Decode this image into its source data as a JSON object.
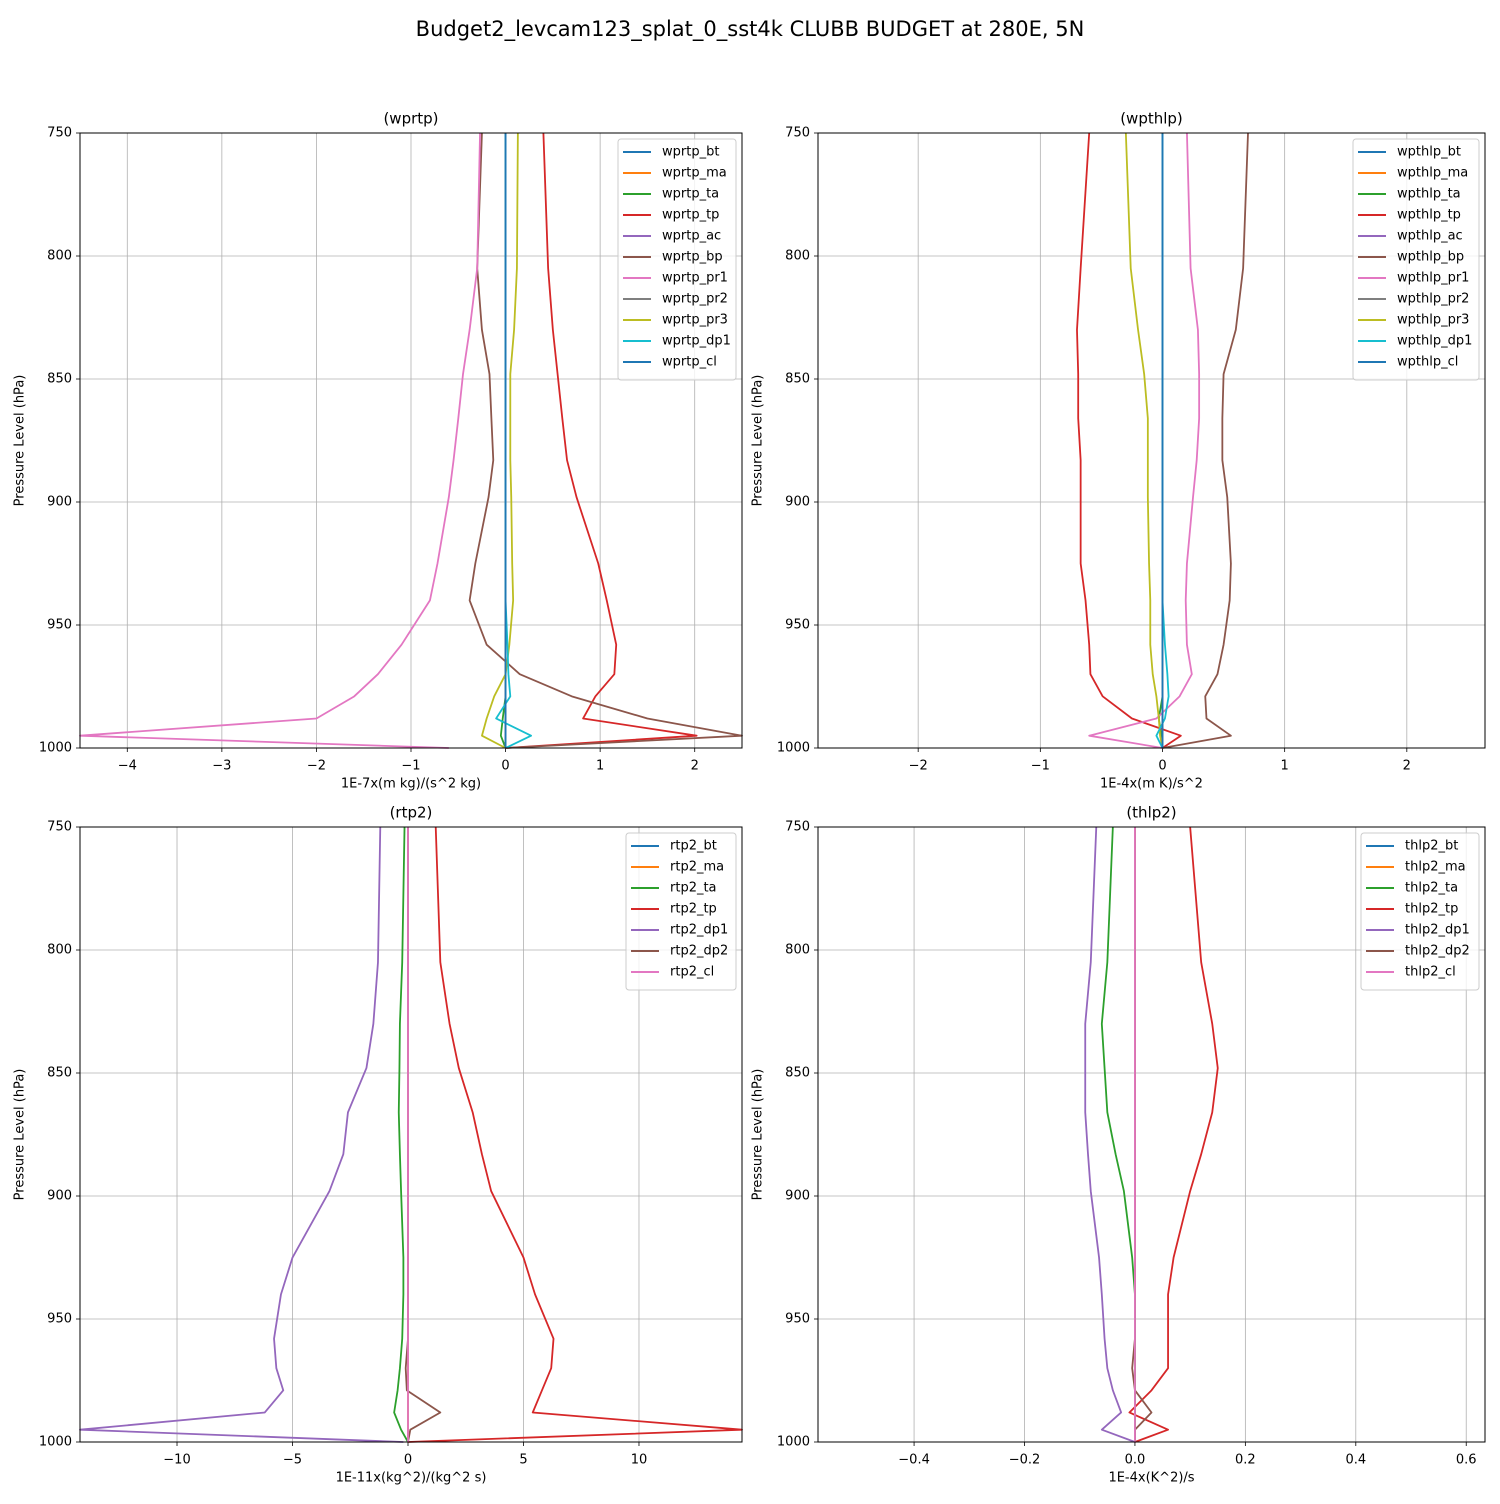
{
  "title": "Budget2_levcam123_splat_0_sst4k CLUBB BUDGET at 280E, 5N",
  "chart_data": [
    {
      "type": "line",
      "title": "(wprtp)",
      "x_label": "1E-7x(m kg)/(s^2 kg)",
      "y_label": "Pressure Level (hPa)",
      "y": [
        750,
        805,
        830,
        848,
        866,
        883,
        898,
        925,
        940,
        958,
        970,
        979,
        988,
        995,
        1000
      ],
      "xlim": [
        -4.5,
        2.5
      ],
      "xticks": [
        {
          "value": -4,
          "label": "−4"
        },
        {
          "value": -3,
          "label": "−3"
        },
        {
          "value": -2,
          "label": "−2"
        },
        {
          "value": -1,
          "label": "−1"
        },
        0,
        1,
        2
      ],
      "ylim": [
        1000,
        750
      ],
      "yticks": [
        750,
        800,
        850,
        900,
        950,
        1000
      ],
      "grid": true,
      "legend": "upper right",
      "series": [
        {
          "name": "wprtp_bt",
          "color": "#1f77b4",
          "values": [
            0,
            0,
            0,
            0,
            0,
            0,
            0,
            0,
            0,
            0,
            0,
            0,
            0,
            0,
            0
          ]
        },
        {
          "name": "wprtp_ma",
          "color": "#ff7f0e",
          "values": [
            0,
            0,
            0,
            0,
            0,
            0,
            0,
            0,
            0,
            0,
            0,
            0,
            0,
            0,
            0
          ]
        },
        {
          "name": "wprtp_ta",
          "color": "#2ca02c",
          "values": [
            0,
            0,
            0,
            0,
            0,
            0,
            0,
            0,
            0,
            0,
            0,
            0,
            -0.03,
            -0.05,
            0
          ]
        },
        {
          "name": "wprtp_tp",
          "color": "#d62728",
          "values": [
            0.4,
            0.45,
            0.5,
            0.55,
            0.6,
            0.65,
            0.75,
            0.98,
            1.07,
            1.17,
            1.15,
            0.95,
            0.82,
            2.02,
            0
          ]
        },
        {
          "name": "wprtp_ac",
          "color": "#9467bd",
          "values": [
            0,
            0,
            0,
            0,
            0,
            0,
            0,
            0,
            0,
            0,
            0,
            0,
            0,
            0,
            0
          ]
        },
        {
          "name": "wprtp_bp",
          "color": "#8c564b",
          "values": [
            -0.25,
            -0.3,
            -0.25,
            -0.17,
            -0.15,
            -0.13,
            -0.18,
            -0.32,
            -0.38,
            -0.2,
            0.15,
            0.7,
            1.5,
            2.5,
            0
          ]
        },
        {
          "name": "wprtp_pr1",
          "color": "#e377c2",
          "values": [
            -0.27,
            -0.3,
            -0.38,
            -0.45,
            -0.5,
            -0.55,
            -0.6,
            -0.72,
            -0.8,
            -1.1,
            -1.35,
            -1.6,
            -2.0,
            -4.5,
            -0.6
          ]
        },
        {
          "name": "wprtp_pr2",
          "color": "#7f7f7f",
          "values": [
            0,
            0,
            0,
            0,
            0,
            0,
            0,
            0,
            0,
            0,
            0,
            0,
            0,
            0,
            0
          ]
        },
        {
          "name": "wprtp_pr3",
          "color": "#bcbd22",
          "values": [
            0.13,
            0.12,
            0.09,
            0.05,
            0.05,
            0.05,
            0.06,
            0.07,
            0.08,
            0.04,
            0,
            -0.12,
            -0.2,
            -0.25,
            0
          ]
        },
        {
          "name": "wprtp_dp1",
          "color": "#17becf",
          "values": [
            0,
            0,
            0,
            0,
            0,
            0,
            0,
            0,
            0,
            0.02,
            0.03,
            0.05,
            -0.1,
            0.27,
            0
          ]
        },
        {
          "name": "wprtp_cl",
          "color": "#1f77b4",
          "values": [
            0,
            0,
            0,
            0,
            0,
            0,
            0,
            0,
            0,
            0,
            0,
            0,
            0,
            0,
            0
          ]
        }
      ]
    },
    {
      "type": "line",
      "title": "(wpthlp)",
      "x_label": "1E-4x(m K)/s^2",
      "y_label": "Pressure Level (hPa)",
      "y": [
        750,
        805,
        830,
        848,
        866,
        883,
        898,
        925,
        940,
        958,
        970,
        979,
        988,
        995,
        1000
      ],
      "xlim": [
        -2.82,
        2.64
      ],
      "xticks": [
        {
          "value": -2,
          "label": "−2"
        },
        {
          "value": -1,
          "label": "−1"
        },
        0,
        1,
        2
      ],
      "ylim": [
        1000,
        750
      ],
      "yticks": [
        750,
        800,
        850,
        900,
        950,
        1000
      ],
      "grid": true,
      "legend": "upper right",
      "series": [
        {
          "name": "wpthlp_bt",
          "color": "#1f77b4",
          "values": [
            0,
            0,
            0,
            0,
            0,
            0,
            0,
            0,
            0,
            0,
            0,
            0,
            0,
            0,
            0
          ]
        },
        {
          "name": "wpthlp_ma",
          "color": "#ff7f0e",
          "values": [
            0,
            0,
            0,
            0,
            0,
            0,
            0,
            0,
            0,
            0,
            0,
            0,
            0,
            0,
            0
          ]
        },
        {
          "name": "wpthlp_ta",
          "color": "#2ca02c",
          "values": [
            0,
            0,
            0,
            0,
            0,
            0,
            0,
            0,
            0,
            0,
            0,
            0,
            -0.03,
            -0.01,
            0
          ]
        },
        {
          "name": "wpthlp_tp",
          "color": "#d62728",
          "values": [
            -0.6,
            -0.67,
            -0.7,
            -0.69,
            -0.69,
            -0.67,
            -0.67,
            -0.67,
            -0.63,
            -0.6,
            -0.59,
            -0.49,
            -0.25,
            0.15,
            0
          ]
        },
        {
          "name": "wpthlp_ac",
          "color": "#9467bd",
          "values": [
            0,
            0,
            0,
            0,
            0,
            0,
            0,
            0,
            0,
            0,
            0,
            0,
            0,
            0,
            0
          ]
        },
        {
          "name": "wpthlp_bp",
          "color": "#8c564b",
          "values": [
            0.7,
            0.66,
            0.6,
            0.5,
            0.49,
            0.49,
            0.53,
            0.56,
            0.55,
            0.5,
            0.45,
            0.35,
            0.36,
            0.56,
            0
          ]
        },
        {
          "name": "wpthlp_pr1",
          "color": "#e377c2",
          "values": [
            0.2,
            0.23,
            0.29,
            0.3,
            0.3,
            0.28,
            0.25,
            0.2,
            0.19,
            0.2,
            0.24,
            0.14,
            -0.05,
            -0.6,
            0
          ]
        },
        {
          "name": "wpthlp_pr2",
          "color": "#7f7f7f",
          "values": [
            0,
            0,
            0,
            0,
            0,
            0,
            0,
            0,
            0,
            0,
            0,
            0,
            0,
            0,
            0
          ]
        },
        {
          "name": "wpthlp_pr3",
          "color": "#bcbd22",
          "values": [
            -0.3,
            -0.26,
            -0.2,
            -0.15,
            -0.12,
            -0.12,
            -0.12,
            -0.11,
            -0.1,
            -0.1,
            -0.08,
            -0.05,
            -0.03,
            -0.02,
            0
          ]
        },
        {
          "name": "wpthlp_dp1",
          "color": "#17becf",
          "values": [
            0,
            0,
            0,
            0,
            0,
            0,
            0,
            0,
            0,
            0.02,
            0.04,
            0.05,
            0.02,
            -0.05,
            0
          ]
        },
        {
          "name": "wpthlp_cl",
          "color": "#1f77b4",
          "values": [
            0,
            0,
            0,
            0,
            0,
            0,
            0,
            0,
            0,
            0,
            0,
            0,
            0,
            0,
            0
          ]
        }
      ]
    },
    {
      "type": "line",
      "title": "(rtp2)",
      "x_label": "1E-11x(kg^2)/(kg^2 s)",
      "y_label": "Pressure Level (hPa)",
      "y": [
        750,
        805,
        830,
        848,
        866,
        883,
        898,
        925,
        940,
        958,
        970,
        979,
        988,
        995,
        1000
      ],
      "xlim": [
        -14.2,
        14.46
      ],
      "xticks": [
        {
          "value": -10,
          "label": "−10"
        },
        {
          "value": -5,
          "label": "−5"
        },
        0,
        5,
        10
      ],
      "ylim": [
        1000,
        750
      ],
      "yticks": [
        750,
        800,
        850,
        900,
        950,
        1000
      ],
      "grid": true,
      "legend": "upper right",
      "series": [
        {
          "name": "rtp2_bt",
          "color": "#1f77b4",
          "values": [
            0,
            0,
            0,
            0,
            0,
            0,
            0,
            0,
            0,
            0,
            0,
            0,
            0,
            0,
            0
          ]
        },
        {
          "name": "rtp2_ma",
          "color": "#ff7f0e",
          "values": [
            0,
            0,
            0,
            0,
            0,
            0,
            0,
            0,
            0,
            0,
            0,
            0,
            0,
            0,
            0
          ]
        },
        {
          "name": "rtp2_ta",
          "color": "#2ca02c",
          "values": [
            -0.15,
            -0.25,
            -0.35,
            -0.37,
            -0.4,
            -0.35,
            -0.3,
            -0.2,
            -0.2,
            -0.25,
            -0.35,
            -0.45,
            -0.6,
            -0.3,
            0
          ]
        },
        {
          "name": "rtp2_tp",
          "color": "#d62728",
          "values": [
            1.2,
            1.4,
            1.8,
            2.2,
            2.8,
            3.2,
            3.6,
            5.0,
            5.5,
            6.3,
            6.2,
            5.8,
            5.4,
            14.46,
            0
          ]
        },
        {
          "name": "rtp2_dp1",
          "color": "#9467bd",
          "values": [
            -1.2,
            -1.3,
            -1.5,
            -1.8,
            -2.6,
            -2.8,
            -3.4,
            -5.0,
            -5.5,
            -5.8,
            -5.7,
            -5.4,
            -6.2,
            -14.2,
            -0.2
          ]
        },
        {
          "name": "rtp2_dp2",
          "color": "#8c564b",
          "values": [
            0,
            0,
            0,
            0,
            0,
            0,
            0,
            0,
            0,
            0,
            -0.1,
            -0.05,
            1.4,
            0.1,
            0
          ]
        },
        {
          "name": "rtp2_cl",
          "color": "#e377c2",
          "values": [
            0,
            0,
            0,
            0,
            0,
            0,
            0,
            0,
            0,
            0,
            0,
            0,
            0,
            0,
            0
          ]
        }
      ]
    },
    {
      "type": "line",
      "title": "(thlp2)",
      "x_label": "1E-4x(K^2)/s",
      "y_label": "Pressure Level (hPa)",
      "y": [
        750,
        805,
        830,
        848,
        866,
        883,
        898,
        925,
        940,
        958,
        970,
        979,
        988,
        995,
        1000
      ],
      "xlim": [
        -0.574,
        0.634
      ],
      "xticks": [
        {
          "value": -0.4,
          "label": "−0.4"
        },
        {
          "value": -0.2,
          "label": "−0.2"
        },
        {
          "value": 0,
          "label": "0.0"
        },
        0.2,
        0.4,
        0.6
      ],
      "ylim": [
        1000,
        750
      ],
      "yticks": [
        750,
        800,
        850,
        900,
        950,
        1000
      ],
      "grid": true,
      "legend": "upper right",
      "series": [
        {
          "name": "thlp2_bt",
          "color": "#1f77b4",
          "values": [
            0,
            0,
            0,
            0,
            0,
            0,
            0,
            0,
            0,
            0,
            0,
            0,
            0,
            0,
            0
          ]
        },
        {
          "name": "thlp2_ma",
          "color": "#ff7f0e",
          "values": [
            0,
            0,
            0,
            0,
            0,
            0,
            0,
            0,
            0,
            0,
            0,
            0,
            0,
            0,
            0
          ]
        },
        {
          "name": "thlp2_ta",
          "color": "#2ca02c",
          "values": [
            -0.04,
            -0.05,
            -0.06,
            -0.055,
            -0.05,
            -0.035,
            -0.02,
            -0.005,
            0,
            0,
            0,
            0,
            0,
            0,
            0
          ]
        },
        {
          "name": "thlp2_tp",
          "color": "#d62728",
          "values": [
            0.1,
            0.12,
            0.14,
            0.15,
            0.14,
            0.12,
            0.1,
            0.07,
            0.06,
            0.06,
            0.06,
            0.03,
            -0.01,
            0.06,
            0
          ]
        },
        {
          "name": "thlp2_dp1",
          "color": "#9467bd",
          "values": [
            -0.07,
            -0.08,
            -0.09,
            -0.09,
            -0.09,
            -0.085,
            -0.08,
            -0.065,
            -0.06,
            -0.055,
            -0.05,
            -0.04,
            -0.025,
            -0.06,
            0
          ]
        },
        {
          "name": "thlp2_dp2",
          "color": "#8c564b",
          "values": [
            0,
            0,
            0,
            0,
            0,
            0,
            0,
            0,
            0,
            0,
            -0.005,
            0,
            0.03,
            0,
            0
          ]
        },
        {
          "name": "thlp2_cl",
          "color": "#e377c2",
          "values": [
            0,
            0,
            0,
            0,
            0,
            0,
            0,
            0,
            0,
            0,
            0,
            0,
            0,
            0,
            0
          ]
        }
      ]
    }
  ]
}
